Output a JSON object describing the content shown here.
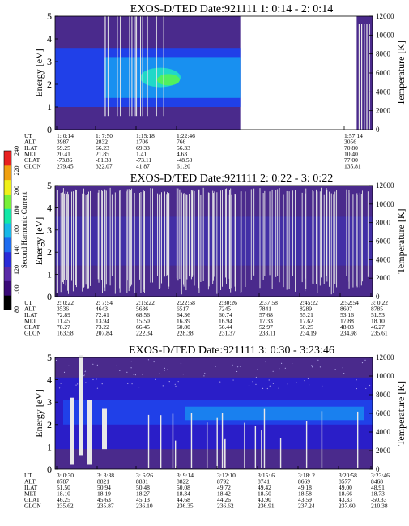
{
  "colorbar": {
    "label": "Second Harmonic Current",
    "ticks": [
      "80",
      "100",
      "120",
      "140",
      "160",
      "180",
      "200",
      "220",
      "240"
    ],
    "colors": [
      "#000000",
      "#3a0a78",
      "#5a2aa8",
      "#2a2ad8",
      "#1e6cf0",
      "#18b8e8",
      "#12e8a8",
      "#78f038",
      "#f0f018",
      "#f0a010",
      "#e82020"
    ]
  },
  "colors": {
    "bg": "#4a2a8c",
    "band_blue": "#2040e8",
    "band_light": "#1890f0",
    "band_cyan": "#20d8c8",
    "band_green": "#50f060",
    "line_white": "#e8e8e8"
  },
  "chart_data": [
    {
      "type": "heatmap",
      "title": "EXOS-D/TED   Date:921111  1: 0:14 - 2: 0:14",
      "ylabel": "Energy [eV]",
      "ylabel_right": "Temperature [K]",
      "ylim": [
        0,
        5
      ],
      "ylim_right": [
        0,
        12000
      ],
      "yticks": [
        "0",
        "1",
        "2",
        "3",
        "4",
        "5"
      ],
      "yticks_right": [
        "0",
        "2000",
        "4000",
        "6000",
        "8000",
        "10000",
        "12000"
      ],
      "row_labels": [
        "UT",
        "ALT",
        "ILAT",
        "MLT",
        "GLAT",
        "GLON"
      ],
      "columns": [
        [
          "1: 0:14",
          "3987",
          "59.25",
          "20.41",
          "-73.86",
          "279.45"
        ],
        [
          "1: 7:50",
          "2832",
          "66.23",
          "21.85",
          "-81.30",
          "322.07"
        ],
        [
          "1:15:18",
          "1706",
          "69.33",
          "1.41",
          "-73.11",
          "41.87"
        ],
        [
          "1:22:46",
          "766",
          "56.33",
          "4.63",
          "-48.50",
          "61.20"
        ],
        [
          "1:57:14",
          "3056",
          "70.80",
          "10.40",
          "77.00",
          "135.81"
        ]
      ],
      "data_coverage_minutes": [
        [
          0,
          35
        ],
        [
          57,
          60
        ]
      ]
    },
    {
      "type": "heatmap",
      "title": "EXOS-D/TED   Date:921111  2: 0:22 - 3: 0:22",
      "ylabel": "Energy [eV]",
      "ylabel_right": "Temperature [K]",
      "ylim": [
        0,
        5
      ],
      "ylim_right": [
        0,
        12000
      ],
      "yticks": [
        "0",
        "1",
        "2",
        "3",
        "4",
        "5"
      ],
      "yticks_right": [
        "0",
        "2000",
        "4000",
        "6000",
        "8000",
        "10000",
        "12000"
      ],
      "row_labels": [
        "UT",
        "ALT",
        "ILAT",
        "MLT",
        "GLAT",
        "GLON"
      ],
      "columns": [
        [
          "2: 0:22",
          "3536",
          "72.89",
          "11.45",
          "78.27",
          "163.58"
        ],
        [
          "2: 7:54",
          "4643",
          "72.41",
          "13.94",
          "73.22",
          "207.84"
        ],
        [
          "2:15:22",
          "5636",
          "68.56",
          "15.50",
          "66.45",
          "222.34"
        ],
        [
          "2:22:58",
          "6517",
          "64.36",
          "16.39",
          "60.80",
          "228.38"
        ],
        [
          "2:30:26",
          "7245",
          "60.74",
          "16.94",
          "56.44",
          "231.37"
        ],
        [
          "2:37:58",
          "7841",
          "57.68",
          "17.33",
          "52.97",
          "233.11"
        ],
        [
          "2:45:22",
          "8289",
          "55.21",
          "17.62",
          "50.25",
          "234.19"
        ],
        [
          "2:52:54",
          "8607",
          "53.16",
          "17.88",
          "48.03",
          "234.98"
        ],
        [
          "3: 0:22",
          "8785",
          "51.53",
          "18.10",
          "46.27",
          "235.61"
        ]
      ]
    },
    {
      "type": "heatmap",
      "title": "EXOS-D/TED   Date:921111  3: 0:30 - 3:23:46",
      "ylabel": "Energy [eV]",
      "ylabel_right": "Temperature [K]",
      "ylim": [
        0,
        5
      ],
      "ylim_right": [
        0,
        12000
      ],
      "yticks": [
        "0",
        "1",
        "2",
        "3",
        "4",
        "5"
      ],
      "yticks_right": [
        "0",
        "2000",
        "4000",
        "6000",
        "8000",
        "10000",
        "12000"
      ],
      "row_labels": [
        "UT",
        "ALT",
        "ILAT",
        "MLT",
        "GLAT",
        "GLON"
      ],
      "columns": [
        [
          "3: 0:30",
          "8787",
          "51.50",
          "18.10",
          "46.25",
          "235.62"
        ],
        [
          "3: 3:38",
          "8821",
          "50.94",
          "18.19",
          "45.63",
          "235.87"
        ],
        [
          "3: 6:26",
          "8831",
          "50.48",
          "18.27",
          "45.13",
          "236.10"
        ],
        [
          "3: 9:14",
          "8822",
          "50.08",
          "18.34",
          "44.68",
          "236.35"
        ],
        [
          "3:12:10",
          "8792",
          "49.72",
          "18.42",
          "44.26",
          "236.62"
        ],
        [
          "3:15: 6",
          "8741",
          "49.42",
          "18.50",
          "43.90",
          "236.91"
        ],
        [
          "3:18: 2",
          "8669",
          "49.18",
          "18.58",
          "43.59",
          "237.24"
        ],
        [
          "3:20:58",
          "8577",
          "49.00",
          "18.66",
          "43.33",
          "237.60"
        ],
        [
          "3:23:46",
          "8468",
          "48.91",
          "18.73",
          "-50.33",
          "210.38"
        ]
      ]
    }
  ]
}
